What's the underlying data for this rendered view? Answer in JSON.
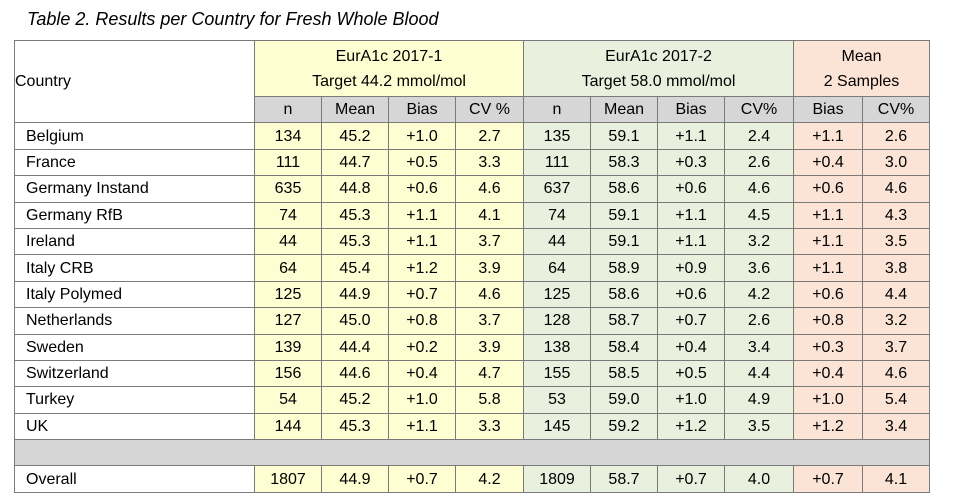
{
  "title": "Table 2. Results per Country for Fresh Whole Blood",
  "columns": {
    "country": "Country",
    "group1_line1": "EurA1c 2017-1",
    "group1_line2": "Target 44.2 mmol/mol",
    "group2_line1": "EurA1c 2017-2",
    "group2_line2": "Target 58.0 mmol/mol",
    "group3_line1": "Mean",
    "group3_line2": "2 Samples",
    "sub1": [
      "n",
      "Mean",
      "Bias",
      "CV %"
    ],
    "sub2": [
      "n",
      "Mean",
      "Bias",
      "CV%"
    ],
    "sub3": [
      "Bias",
      "CV%"
    ]
  },
  "rows": [
    {
      "country": "Belgium",
      "cells": [
        "134",
        "45.2",
        "+1.0",
        "2.7",
        "135",
        "59.1",
        "+1.1",
        "2.4",
        "+1.1",
        "2.6"
      ]
    },
    {
      "country": "France",
      "cells": [
        "111",
        "44.7",
        "+0.5",
        "3.3",
        "111",
        "58.3",
        "+0.3",
        "2.6",
        "+0.4",
        "3.0"
      ]
    },
    {
      "country": "Germany Instand",
      "cells": [
        "635",
        "44.8",
        "+0.6",
        "4.6",
        "637",
        "58.6",
        "+0.6",
        "4.6",
        "+0.6",
        "4.6"
      ]
    },
    {
      "country": "Germany RfB",
      "cells": [
        "74",
        "45.3",
        "+1.1",
        "4.1",
        "74",
        "59.1",
        "+1.1",
        "4.5",
        "+1.1",
        "4.3"
      ]
    },
    {
      "country": "Ireland",
      "cells": [
        "44",
        "45.3",
        "+1.1",
        "3.7",
        "44",
        "59.1",
        "+1.1",
        "3.2",
        "+1.1",
        "3.5"
      ]
    },
    {
      "country": "Italy CRB",
      "cells": [
        "64",
        "45.4",
        "+1.2",
        "3.9",
        "64",
        "58.9",
        "+0.9",
        "3.6",
        "+1.1",
        "3.8"
      ]
    },
    {
      "country": "Italy Polymed",
      "cells": [
        "125",
        "44.9",
        "+0.7",
        "4.6",
        "125",
        "58.6",
        "+0.6",
        "4.2",
        "+0.6",
        "4.4"
      ]
    },
    {
      "country": "Netherlands",
      "cells": [
        "127",
        "45.0",
        "+0.8",
        "3.7",
        "128",
        "58.7",
        "+0.7",
        "2.6",
        "+0.8",
        "3.2"
      ]
    },
    {
      "country": "Sweden",
      "cells": [
        "139",
        "44.4",
        "+0.2",
        "3.9",
        "138",
        "58.4",
        "+0.4",
        "3.4",
        "+0.3",
        "3.7"
      ]
    },
    {
      "country": "Switzerland",
      "cells": [
        "156",
        "44.6",
        "+0.4",
        "4.7",
        "155",
        "58.5",
        "+0.5",
        "4.4",
        "+0.4",
        "4.6"
      ]
    },
    {
      "country": "Turkey",
      "cells": [
        "54",
        "45.2",
        "+1.0",
        "5.8",
        "53",
        "59.0",
        "+1.0",
        "4.9",
        "+1.0",
        "5.4"
      ]
    },
    {
      "country": "UK",
      "cells": [
        "144",
        "45.3",
        "+1.1",
        "3.3",
        "145",
        "59.2",
        "+1.2",
        "3.5",
        "+1.2",
        "3.4"
      ]
    }
  ],
  "overall": {
    "country": "Overall",
    "cells": [
      "1807",
      "44.9",
      "+0.7",
      "4.2",
      "1809",
      "58.7",
      "+0.7",
      "4.0",
      "+0.7",
      "4.1"
    ]
  },
  "colors": {
    "group1": "#fefed2",
    "group2": "#e9f0de",
    "group3": "#fbe3d6",
    "subheader": "#d6d6d6"
  }
}
